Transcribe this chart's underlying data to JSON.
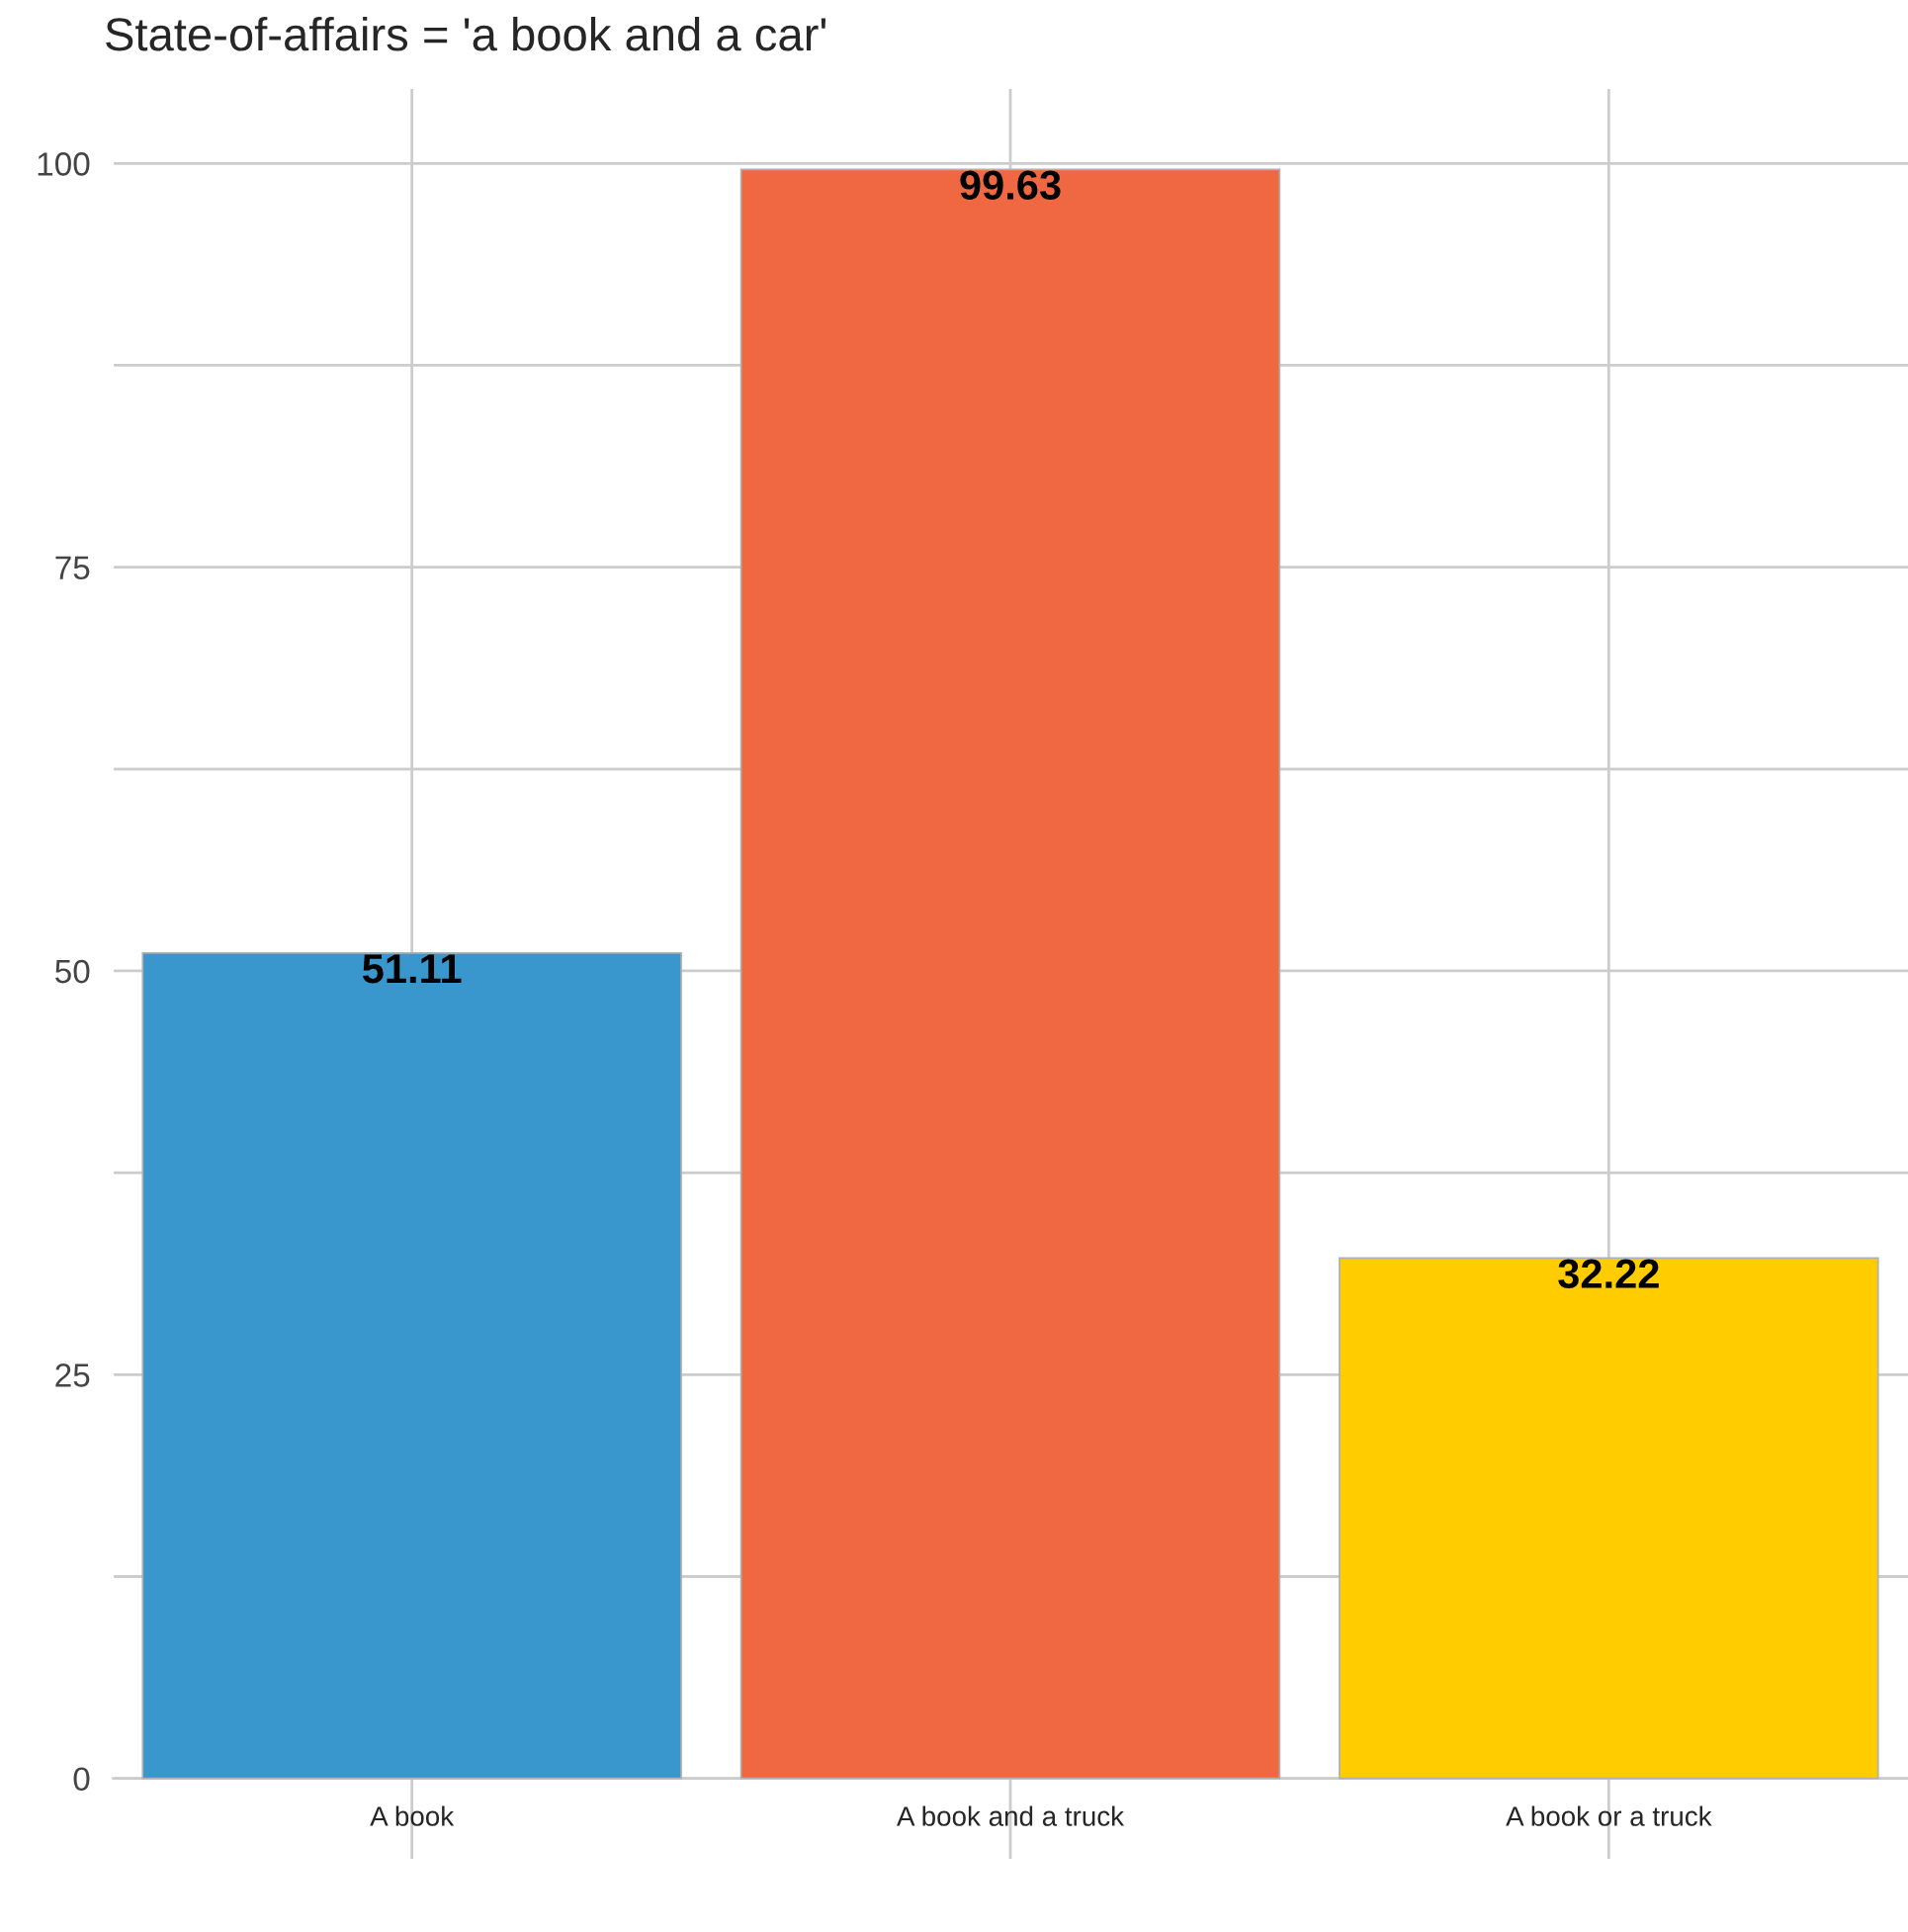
{
  "chart_data": {
    "type": "bar",
    "title": "State-of-affairs = 'a book and a car'",
    "categories": [
      "A book",
      "A book and a truck",
      "A book or a truck"
    ],
    "values": [
      51.11,
      99.63,
      32.22
    ],
    "colors": [
      "#3a97cd",
      "#f06842",
      "#ffcc00"
    ],
    "ylim": [
      -4.98,
      104.61
    ],
    "yticks": [
      0,
      {
        "value": 12.5,
        "label": null
      },
      25,
      {
        "value": 37.5,
        "label": null
      },
      50,
      {
        "value": 62.5,
        "label": null
      },
      75,
      {
        "value": 87.5,
        "label": null
      },
      100
    ],
    "grid": true,
    "data_labels": true
  }
}
